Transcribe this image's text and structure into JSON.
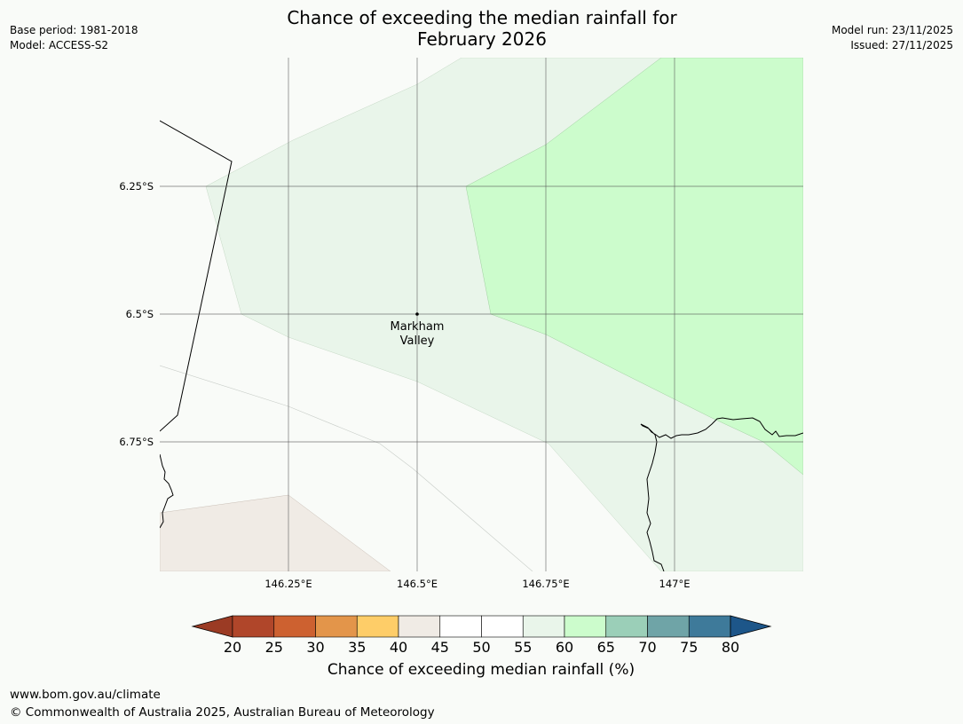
{
  "header": {
    "title_line1": "Chance of exceeding the median rainfall for",
    "title_line2": "February 2026",
    "base_period": "Base period: 1981-2018",
    "model": "Model: ACCESS-S2",
    "model_run": "Model run: 23/11/2025",
    "issued": "Issued: 27/11/2025"
  },
  "map": {
    "lat_labels": [
      "6.25°S",
      "6.5°S",
      "6.75°S"
    ],
    "lon_labels": [
      "146.25°E",
      "146.5°E",
      "146.75°E",
      "147°E"
    ],
    "place": {
      "name_line1": "Markham",
      "name_line2": "Valley"
    }
  },
  "colorbar": {
    "ticks": [
      "20",
      "25",
      "30",
      "35",
      "40",
      "45",
      "50",
      "55",
      "60",
      "65",
      "70",
      "75",
      "80"
    ],
    "colors": [
      "#b0462a",
      "#cd6130",
      "#e3954a",
      "#fecd68",
      "#f0ebe5",
      "#ffffff",
      "#ffffff",
      "#e9f5ea",
      "#ccfccc",
      "#9bcfb8",
      "#6fa4a7",
      "#3e7a9a"
    ],
    "under_color": "#9b3b24",
    "over_color": "#1d5689",
    "label": "Chance of exceeding median rainfall (%)"
  },
  "footer": {
    "url": "www.bom.gov.au/climate",
    "copyright": "© Commonwealth of Australia 2025, Australian Bureau of Meteorology"
  }
}
